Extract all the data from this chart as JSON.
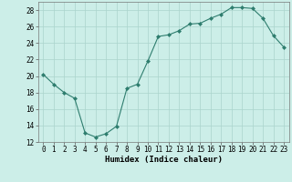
{
  "x": [
    0,
    1,
    2,
    3,
    4,
    5,
    6,
    7,
    8,
    9,
    10,
    11,
    12,
    13,
    14,
    15,
    16,
    17,
    18,
    19,
    20,
    21,
    22,
    23
  ],
  "y": [
    20.2,
    19.0,
    18.0,
    17.3,
    13.1,
    12.6,
    13.0,
    13.9,
    18.5,
    19.0,
    21.8,
    24.8,
    25.0,
    25.5,
    26.3,
    26.4,
    27.0,
    27.5,
    28.3,
    28.3,
    28.2,
    27.0,
    24.9,
    23.5
  ],
  "line_color": "#2e7d6e",
  "marker": "D",
  "marker_size": 2,
  "background_color": "#cceee8",
  "grid_color": "#aad4cc",
  "xlabel": "Humidex (Indice chaleur)",
  "ylim": [
    12,
    29
  ],
  "xlim": [
    -0.5,
    23.5
  ],
  "yticks": [
    12,
    14,
    16,
    18,
    20,
    22,
    24,
    26,
    28
  ],
  "xticks": [
    0,
    1,
    2,
    3,
    4,
    5,
    6,
    7,
    8,
    9,
    10,
    11,
    12,
    13,
    14,
    15,
    16,
    17,
    18,
    19,
    20,
    21,
    22,
    23
  ],
  "tick_label_size": 5.5,
  "xlabel_size": 6.5
}
